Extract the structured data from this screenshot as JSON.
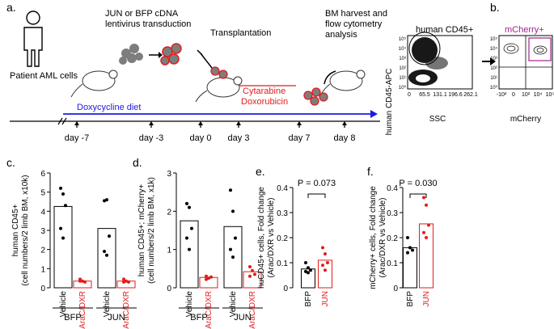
{
  "figure": {
    "panel_labels": {
      "a": "a.",
      "b": "b.",
      "c": "c.",
      "d": "d.",
      "e": "e.",
      "f": "f."
    },
    "schematic": {
      "patient_label": "Patient AML cells",
      "transduction_label": [
        "JUN or BFP cDNA",
        "lentivirus transduction"
      ],
      "transplant_label": "Transplantation",
      "harvest_label": [
        "BM harvest and",
        "flow cytometry",
        "analysis"
      ],
      "diet_label": "Doxycycline diet",
      "drug_label": [
        "Cytarabine",
        "Doxorubicin"
      ],
      "days": [
        "day -7",
        "day -3",
        "day 0",
        "day 3",
        "day 7",
        "day 8"
      ],
      "colors": {
        "diet": "#1a1ae6",
        "drug": "#e11d1d",
        "cell": "#7d7d7d",
        "cell_ring": "#e11d1d"
      }
    },
    "flow": {
      "gate1_label": "human CD45+",
      "gate2_label": "mCherry+",
      "y_label": "human CD45-APC",
      "x_label1": "SSC",
      "x_label2": "mCherry",
      "x_ticks1": [
        "0",
        "65.5",
        "131.1",
        "196.6",
        "262.1"
      ],
      "y_ticks": [
        "10⁰",
        "10¹",
        "10²",
        "10³",
        "10⁴",
        "10⁵"
      ],
      "x_ticks2": [
        "-10²",
        "0",
        "10²",
        "10⁴",
        "10⁵"
      ],
      "gate2_color": "#a0228a"
    }
  },
  "chart_data": [
    {
      "panel": "c",
      "type": "bar",
      "ylabel": [
        "human CD45+",
        "(cell numbers/2 limb BM, x10k)"
      ],
      "ylim": [
        0,
        6
      ],
      "yticks": [
        "0",
        "1",
        "2",
        "3",
        "4",
        "5",
        "6"
      ],
      "categories": [
        "Vehicle",
        "AraC/DXR",
        "Vehicle",
        "AraC/DXR"
      ],
      "groups": [
        "BFP",
        "JUN"
      ],
      "values": [
        4.25,
        0.35,
        3.1,
        0.35
      ],
      "bar_colors": [
        "#000000",
        "#e11d1d",
        "#000000",
        "#e11d1d"
      ],
      "points": [
        [
          5.2,
          4.9,
          4.3,
          3.1,
          2.6
        ],
        [
          0.45,
          0.35,
          0.3,
          0.35
        ],
        [
          4.55,
          4.6,
          2.7,
          1.9,
          1.7
        ],
        [
          0.45,
          0.35,
          0.3,
          0.3
        ]
      ]
    },
    {
      "panel": "d",
      "type": "bar",
      "ylabel": [
        "human CD45+; mCherry+",
        "(cell numbers/2 limb BM, x1k)"
      ],
      "ylim": [
        0,
        3
      ],
      "yticks": [
        "0",
        "1",
        "2",
        "3"
      ],
      "categories": [
        "Vehicle",
        "AraC/DXR",
        "Vehicle",
        "AraC/DXR"
      ],
      "groups": [
        "BFP",
        "JUN"
      ],
      "values": [
        1.75,
        0.27,
        1.6,
        0.42
      ],
      "bar_colors": [
        "#000000",
        "#e11d1d",
        "#000000",
        "#e11d1d"
      ],
      "points": [
        [
          2.2,
          2.1,
          1.55,
          1.3,
          1.0
        ],
        [
          0.3,
          0.25,
          0.28,
          0.22
        ],
        [
          2.55,
          2.0,
          1.3,
          1.0,
          0.8
        ],
        [
          0.55,
          0.45,
          0.35,
          0.3
        ]
      ]
    },
    {
      "panel": "e",
      "type": "bar",
      "ylabel": [
        "huCD45+ cells, Fold change",
        "(Arac/DXR vs Vehicle)"
      ],
      "ylim": [
        0,
        0.4
      ],
      "yticks": [
        "0",
        "0.1",
        "0.2",
        "0.3",
        "0.4"
      ],
      "categories": [
        "BFP",
        "JUN"
      ],
      "values": [
        0.075,
        0.11
      ],
      "bar_colors": [
        "#000000",
        "#e11d1d"
      ],
      "points": [
        [
          0.1,
          0.08,
          0.07,
          0.065,
          0.06
        ],
        [
          0.16,
          0.135,
          0.1,
          0.09,
          0.07
        ]
      ],
      "annotation": "P = 0.073"
    },
    {
      "panel": "f",
      "type": "bar",
      "ylabel": [
        "mCherry+ cells, Fold change",
        "(Arac/DXR vs Vehicle)"
      ],
      "ylim": [
        0,
        0.4
      ],
      "yticks": [
        "0",
        "0.1",
        "0.2",
        "0.3",
        "0.4"
      ],
      "categories": [
        "BFP",
        "JUN"
      ],
      "values": [
        0.16,
        0.255
      ],
      "bar_colors": [
        "#000000",
        "#e11d1d"
      ],
      "points": [
        [
          0.2,
          0.16,
          0.15,
          0.14
        ],
        [
          0.36,
          0.33,
          0.25,
          0.22,
          0.2
        ]
      ],
      "annotation": "P = 0.030"
    }
  ]
}
